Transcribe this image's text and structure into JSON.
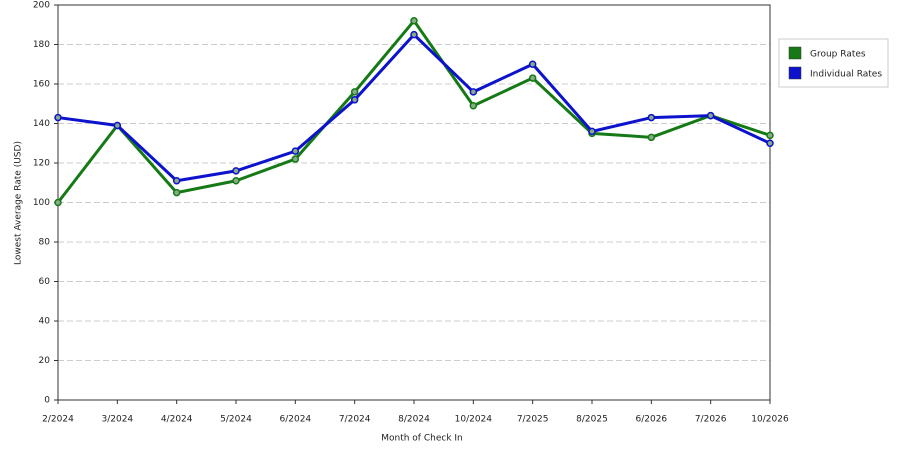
{
  "chart_data": {
    "type": "line",
    "x_label": "Month of Check In",
    "y_label": "Lowest Average Rate (USD)",
    "categories": [
      "2/2024",
      "3/2024",
      "4/2024",
      "5/2024",
      "6/2024",
      "7/2024",
      "8/2024",
      "10/2024",
      "7/2025",
      "8/2025",
      "6/2026",
      "7/2026",
      "10/2026"
    ],
    "series": [
      {
        "name": "Group Rates",
        "color": "#157a15",
        "values": [
          100,
          139,
          105,
          111,
          122,
          156,
          192,
          149,
          163,
          135,
          133,
          144,
          134
        ]
      },
      {
        "name": "Individual Rates",
        "color": "#0d12cc",
        "values": [
          143,
          139,
          111,
          116,
          126,
          152,
          185,
          156,
          170,
          136,
          143,
          144,
          130
        ]
      }
    ],
    "ylim": [
      0,
      200
    ],
    "yticks": [
      0,
      20,
      40,
      60,
      80,
      100,
      120,
      140,
      160,
      180,
      200
    ],
    "grid": true,
    "legend": "right"
  }
}
